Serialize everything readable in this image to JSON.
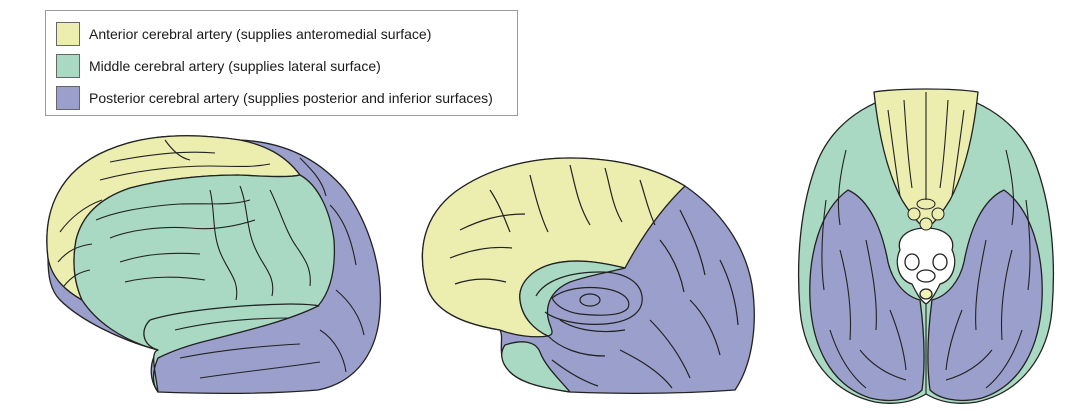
{
  "legend": {
    "items": [
      {
        "label": "Anterior cerebral artery (supplies anteromedial surface)",
        "color": "#ebeeaf"
      },
      {
        "label": "Middle cerebral artery (supplies lateral surface)",
        "color": "#a9d9c2"
      },
      {
        "label": "Posterior cerebral artery (supplies posterior and inferior surfaces)",
        "color": "#9b9fcb"
      }
    ]
  },
  "views": [
    "lateral-view",
    "medial-view",
    "inferior-view"
  ]
}
